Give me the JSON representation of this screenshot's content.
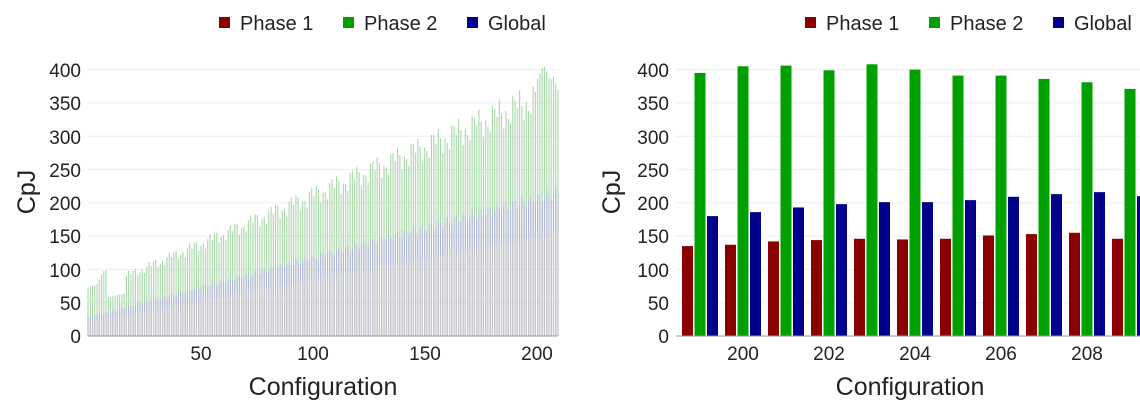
{
  "colors": {
    "phase1": "#8b0000",
    "phase2": "#00a000",
    "global": "#00008b"
  },
  "chart_data": [
    {
      "type": "bar",
      "xlabel": "Configuration",
      "ylabel": "CpJ",
      "xlim": [
        1,
        209
      ],
      "ylim": [
        0,
        410
      ],
      "xticks": [
        "50",
        "100",
        "150",
        "200"
      ],
      "xtick_values": [
        50,
        100,
        150,
        200
      ],
      "yticks": [
        "0",
        "50",
        "100",
        "150",
        "200",
        "250",
        "300",
        "350",
        "400"
      ],
      "ytick_values": [
        0,
        50,
        100,
        150,
        200,
        250,
        300,
        350,
        400
      ],
      "grid": true,
      "legend_position": "top",
      "series": [
        {
          "name": "Phase 1",
          "trend_start": 20,
          "trend_end": 155
        },
        {
          "name": "Phase 2",
          "trend_start": 65,
          "trend_end": 370
        },
        {
          "name": "Global",
          "trend_start": 28,
          "trend_end": 215
        }
      ]
    },
    {
      "type": "bar",
      "xlabel": "Configuration",
      "ylabel": "CpJ",
      "ylim": [
        0,
        410
      ],
      "categories": [
        199,
        200,
        201,
        202,
        203,
        204,
        205,
        206,
        207,
        208,
        209
      ],
      "xticks": [
        "200",
        "202",
        "204",
        "206",
        "208"
      ],
      "xtick_values": [
        200,
        202,
        204,
        206,
        208
      ],
      "yticks": [
        "0",
        "50",
        "100",
        "150",
        "200",
        "250",
        "300",
        "350",
        "400"
      ],
      "ytick_values": [
        0,
        50,
        100,
        150,
        200,
        250,
        300,
        350,
        400
      ],
      "grid": true,
      "legend_position": "top",
      "series": [
        {
          "name": "Phase 1",
          "values": [
            135,
            137,
            142,
            144,
            146,
            145,
            146,
            151,
            153,
            155,
            146
          ]
        },
        {
          "name": "Phase 2",
          "values": [
            395,
            405,
            406,
            399,
            408,
            400,
            391,
            391,
            386,
            381,
            371
          ]
        },
        {
          "name": "Global",
          "values": [
            180,
            186,
            193,
            198,
            201,
            201,
            204,
            209,
            213,
            216,
            210
          ]
        }
      ]
    }
  ]
}
